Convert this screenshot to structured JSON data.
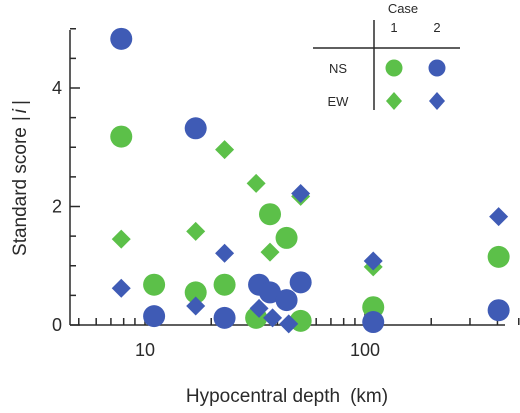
{
  "chart_data": {
    "type": "scatter",
    "xlabel": "Hypocentral depth",
    "xlabel_unit": "(km)",
    "ylabel": "Standard score",
    "ylabel_symbol_base": "s",
    "ylabel_symbol_sub": "i",
    "x_scale": "log",
    "xlim": [
      5,
      500
    ],
    "ylim": [
      0,
      5
    ],
    "x_ticks": [
      {
        "value": 10,
        "label": "10"
      },
      {
        "value": 100,
        "label": "100"
      }
    ],
    "y_ticks": [
      {
        "value": 0,
        "label": "0"
      },
      {
        "value": 2,
        "label": "2"
      },
      {
        "value": 4,
        "label": "4"
      }
    ],
    "legend": {
      "title": "Case",
      "columns": [
        "1",
        "2"
      ],
      "rows": [
        "NS",
        "EW"
      ],
      "placement": "top-right"
    },
    "colors": {
      "case1": "#5cc049",
      "case2": "#3f5bb5",
      "axis": "#2a2a2a"
    },
    "series": [
      {
        "component": "NS",
        "case": "1",
        "marker": "circle",
        "points": [
          [
            7.8,
            3.18
          ],
          [
            11,
            0.68
          ],
          [
            17,
            0.55
          ],
          [
            23,
            0.68
          ],
          [
            32,
            0.12
          ],
          [
            37,
            1.87
          ],
          [
            44,
            1.47
          ],
          [
            51,
            0.07
          ],
          [
            109,
            0.3
          ],
          [
            405,
            1.15
          ]
        ]
      },
      {
        "component": "NS",
        "case": "2",
        "marker": "circle",
        "points": [
          [
            7.8,
            4.83
          ],
          [
            11,
            0.15
          ],
          [
            17,
            3.32
          ],
          [
            23,
            0.12
          ],
          [
            33,
            0.68
          ],
          [
            37,
            0.55
          ],
          [
            44,
            0.42
          ],
          [
            51,
            0.72
          ],
          [
            109,
            0.05
          ],
          [
            405,
            0.25
          ]
        ]
      },
      {
        "component": "EW",
        "case": "1",
        "marker": "diamond",
        "points": [
          [
            7.8,
            1.45
          ],
          [
            17,
            1.58
          ],
          [
            23,
            2.96
          ],
          [
            32,
            2.39
          ],
          [
            37,
            1.23
          ],
          [
            51,
            2.17
          ],
          [
            109,
            0.98
          ]
        ]
      },
      {
        "component": "EW",
        "case": "2",
        "marker": "diamond",
        "points": [
          [
            7.8,
            0.62
          ],
          [
            17,
            0.32
          ],
          [
            23,
            1.21
          ],
          [
            33,
            0.28
          ],
          [
            38,
            0.12
          ],
          [
            45,
            0.02
          ],
          [
            51,
            2.22
          ],
          [
            109,
            1.08
          ],
          [
            405,
            1.83
          ]
        ]
      }
    ]
  }
}
